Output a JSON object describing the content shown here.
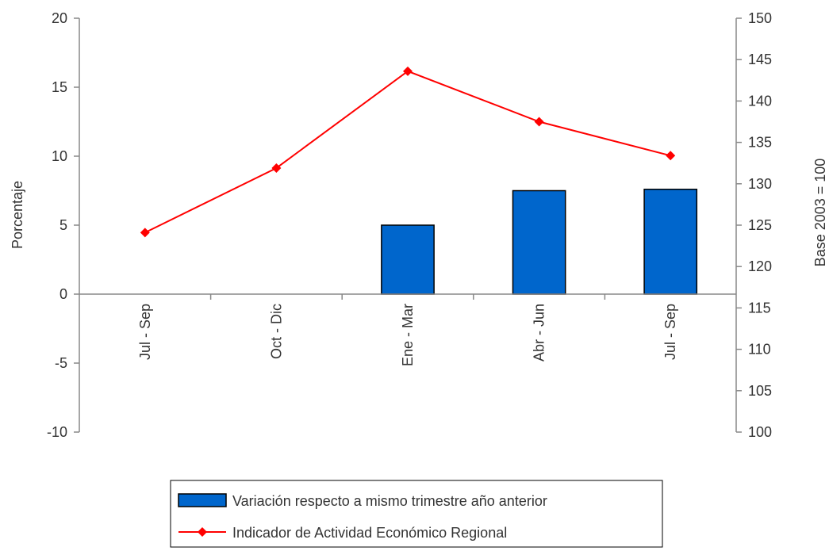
{
  "chart_data": {
    "type": "bar+line",
    "categories": [
      "Jul - Sep",
      "Oct - Dic",
      "Ene - Mar",
      "Abr - Jun",
      "Jul - Sep"
    ],
    "series": [
      {
        "name": "Variación respecto a mismo trimestre año anterior",
        "type": "bar",
        "axis": "left",
        "values": [
          null,
          null,
          5.0,
          7.5,
          7.6
        ],
        "color": "#0066CC"
      },
      {
        "name": "Indicador de Actividad Económico Regional",
        "type": "line",
        "axis": "right",
        "values": [
          124.1,
          131.9,
          143.6,
          137.5,
          133.4
        ],
        "color": "#FF0000"
      }
    ],
    "y_left": {
      "label": "Porcentaje",
      "lim": [
        -10,
        20
      ],
      "ticks": [
        -10,
        -5,
        0,
        5,
        10,
        15,
        20
      ]
    },
    "y_right": {
      "label": "Base 2003 = 100",
      "lim": [
        100,
        150
      ],
      "ticks": [
        100,
        105,
        110,
        115,
        120,
        125,
        130,
        135,
        140,
        145,
        150
      ]
    },
    "grid": false,
    "legend_position": "bottom"
  }
}
